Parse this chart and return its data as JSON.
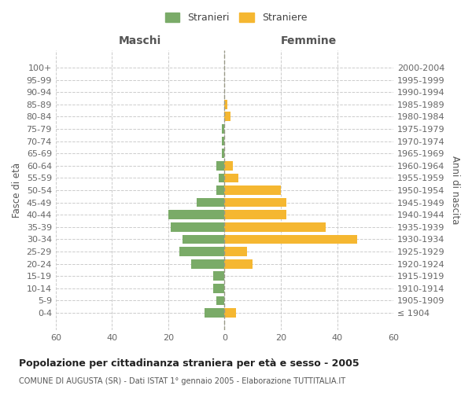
{
  "age_groups": [
    "100+",
    "95-99",
    "90-94",
    "85-89",
    "80-84",
    "75-79",
    "70-74",
    "65-69",
    "60-64",
    "55-59",
    "50-54",
    "45-49",
    "40-44",
    "35-39",
    "30-34",
    "25-29",
    "20-24",
    "15-19",
    "10-14",
    "5-9",
    "0-4"
  ],
  "birth_years": [
    "≤ 1904",
    "1905-1909",
    "1910-1914",
    "1915-1919",
    "1920-1924",
    "1925-1929",
    "1930-1934",
    "1935-1939",
    "1940-1944",
    "1945-1949",
    "1950-1954",
    "1955-1959",
    "1960-1964",
    "1965-1969",
    "1970-1974",
    "1975-1979",
    "1980-1984",
    "1985-1989",
    "1990-1994",
    "1995-1999",
    "2000-2004"
  ],
  "males": [
    0,
    0,
    0,
    0,
    0,
    1,
    1,
    1,
    3,
    2,
    3,
    10,
    20,
    19,
    15,
    16,
    12,
    4,
    4,
    3,
    7
  ],
  "females": [
    0,
    0,
    0,
    1,
    2,
    0,
    0,
    0,
    3,
    5,
    20,
    22,
    22,
    36,
    47,
    8,
    10,
    0,
    0,
    0,
    4
  ],
  "male_color": "#7aab68",
  "female_color": "#f5b731",
  "background_color": "#ffffff",
  "grid_color": "#cccccc",
  "title": "Popolazione per cittadinanza straniera per età e sesso - 2005",
  "subtitle": "COMUNE DI AUGUSTA (SR) - Dati ISTAT 1° gennaio 2005 - Elaborazione TUTTITALIA.IT",
  "xlabel_left": "Maschi",
  "xlabel_right": "Femmine",
  "ylabel_left": "Fasce di età",
  "ylabel_right": "Anni di nascita",
  "legend_male": "Stranieri",
  "legend_female": "Straniere",
  "xlim": 60,
  "bar_height": 0.75,
  "center_line_color": "#999988",
  "center_line_style": "--"
}
